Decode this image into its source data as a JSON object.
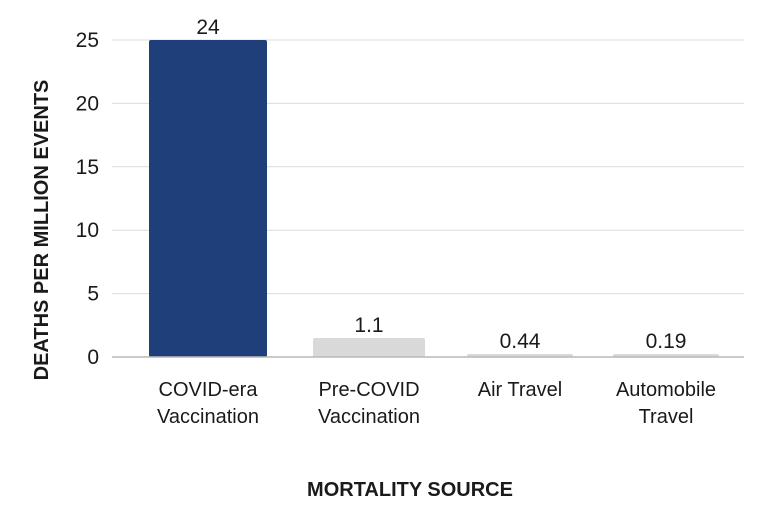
{
  "chart_data": {
    "type": "bar",
    "title": "",
    "xlabel": "MORTALITY SOURCE",
    "ylabel": "DEATHS PER MILLION EVENTS",
    "ylim": [
      0,
      25
    ],
    "y_ticks": [
      "0",
      "5",
      "10",
      "15",
      "20",
      "25"
    ],
    "grid": true,
    "categories": [
      [
        "COVID-era",
        "Vaccination"
      ],
      [
        "Pre-COVID",
        "Vaccination"
      ],
      [
        "Air Travel"
      ],
      [
        "Automobile",
        "Travel"
      ]
    ],
    "values": [
      24,
      1.1,
      0.44,
      0.19
    ],
    "data_labels": [
      "24",
      "1.1",
      "0.44",
      "0.19"
    ],
    "bar_heights": [
      25,
      1.5,
      0.2,
      0.2
    ],
    "colors": [
      "#1f3f7a",
      "#d9d9d9",
      "#d9d9d9",
      "#d9d9d9"
    ]
  }
}
